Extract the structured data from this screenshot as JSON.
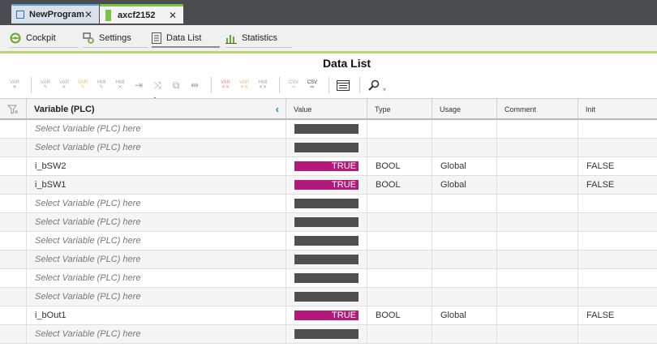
{
  "tabs": [
    {
      "label": "NewProgram",
      "icon": "program-icon",
      "close": "✕"
    },
    {
      "label": "axcf2152",
      "icon": "device-icon",
      "close": "✕"
    }
  ],
  "nav": [
    {
      "label": "Cockpit",
      "icon": "steering-wheel-icon"
    },
    {
      "label": "Settings",
      "icon": "settings-icon"
    },
    {
      "label": "Data List",
      "icon": "list-icon"
    },
    {
      "label": "Statistics",
      "icon": "bar-chart-icon"
    }
  ],
  "page_title": "Data List",
  "toolbar_labels": {
    "var_add": "VAR",
    "var_edit": "VAR",
    "var_edit2": "VAR",
    "var_delete": "VAR",
    "hmi_edit": "HMI",
    "hmi_delete": "HMI",
    "var_delete_all": "VAR",
    "var_delete_all2": "VAR",
    "hmi_delete_all": "HMI",
    "export_csv": "CSV",
    "import_csv": "CSV"
  },
  "columns": {
    "variable": "Variable (PLC)",
    "value": "Value",
    "type": "Type",
    "usage": "Usage",
    "comment": "Comment",
    "init": "Init"
  },
  "rows": [
    {
      "variable": "Select Variable (PLC) here",
      "value": "",
      "type": "",
      "usage": "",
      "comment": "",
      "init": ""
    },
    {
      "variable": "Select Variable (PLC) here",
      "value": "",
      "type": "",
      "usage": "",
      "comment": "",
      "init": ""
    },
    {
      "variable": "i_bSW2",
      "value": "TRUE",
      "type": "BOOL",
      "usage": "Global",
      "comment": "",
      "init": "FALSE"
    },
    {
      "variable": "i_bSW1",
      "value": "TRUE",
      "type": "BOOL",
      "usage": "Global",
      "comment": "",
      "init": "FALSE"
    },
    {
      "variable": "Select Variable (PLC) here",
      "value": "",
      "type": "",
      "usage": "",
      "comment": "",
      "init": ""
    },
    {
      "variable": "Select Variable (PLC) here",
      "value": "",
      "type": "",
      "usage": "",
      "comment": "",
      "init": ""
    },
    {
      "variable": "Select Variable (PLC) here",
      "value": "",
      "type": "",
      "usage": "",
      "comment": "",
      "init": ""
    },
    {
      "variable": "Select Variable (PLC) here",
      "value": "",
      "type": "",
      "usage": "",
      "comment": "",
      "init": ""
    },
    {
      "variable": "Select Variable (PLC) here",
      "value": "",
      "type": "",
      "usage": "",
      "comment": "",
      "init": ""
    },
    {
      "variable": "Select Variable (PLC) here",
      "value": "",
      "type": "",
      "usage": "",
      "comment": "",
      "init": ""
    },
    {
      "variable": "i_bOut1",
      "value": "TRUE",
      "type": "BOOL",
      "usage": "Global",
      "comment": "",
      "init": "FALSE"
    },
    {
      "variable": "Select Variable (PLC) here",
      "value": "",
      "type": "",
      "usage": "",
      "comment": "",
      "init": ""
    }
  ],
  "colors": {
    "true_value": "#b3187a",
    "empty_value": "#4f4f4f",
    "accent_green": "#7dc242",
    "accent_blue": "#5aa0d2",
    "collapse_arrow": "#1f8f9b"
  }
}
